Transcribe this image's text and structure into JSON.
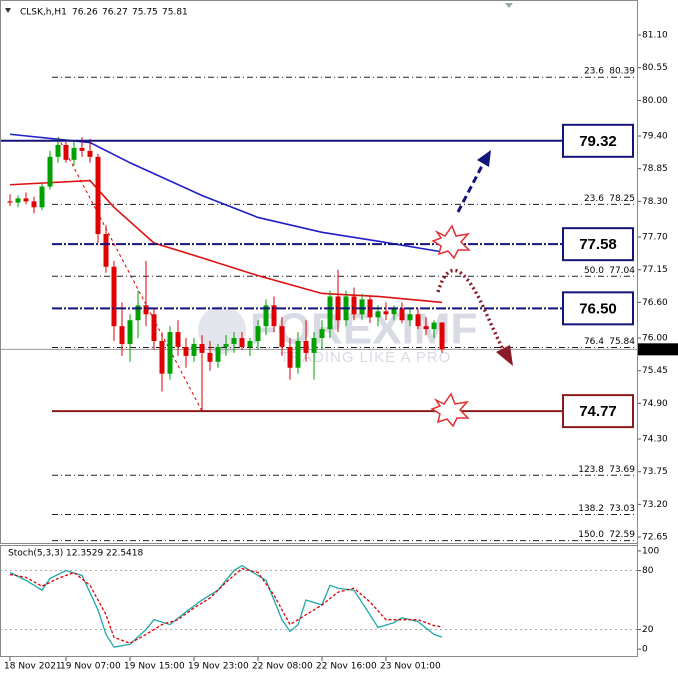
{
  "chart_data": [
    {
      "type": "candlestick",
      "symbol": "CLSK,h,H1",
      "header_ohlc": [
        76.26,
        76.27,
        75.75,
        75.81
      ],
      "watermark": [
        "FOREXIMF",
        "TRADING LIKE A PRO"
      ],
      "categories": [
        "18 Nov 2021",
        null,
        null,
        null,
        null,
        null,
        null,
        "19 Nov 07:00",
        null,
        null,
        null,
        null,
        null,
        null,
        null,
        "19 Nov 15:00",
        null,
        null,
        null,
        null,
        null,
        null,
        null,
        "19 Nov 23:00",
        null,
        null,
        null,
        null,
        null,
        null,
        null,
        "22 Nov 08:00",
        null,
        null,
        null,
        null,
        null,
        null,
        null,
        "22 Nov 16:00",
        null,
        null,
        null,
        null,
        null,
        null,
        null,
        "23 Nov 01:00",
        null,
        null,
        null,
        null,
        null,
        null,
        null
      ],
      "open": [
        78.3,
        78.28,
        78.35,
        78.3,
        78.2,
        78.55,
        79.05,
        79.25,
        79.0,
        79.2,
        79.15,
        79.05,
        77.75,
        77.2,
        76.2,
        75.9,
        76.3,
        76.55,
        76.4,
        75.95,
        75.4,
        76.1,
        75.85,
        75.7,
        75.9,
        75.75,
        75.6,
        75.85,
        75.9,
        76.0,
        75.85,
        75.95,
        76.2,
        76.55,
        76.2,
        75.85,
        75.5,
        75.95,
        75.75,
        76.0,
        76.15,
        76.7,
        76.3,
        76.7,
        76.4,
        76.65,
        76.35,
        76.45,
        76.4,
        76.5,
        76.3,
        76.4,
        76.2,
        76.15,
        76.26
      ],
      "high": [
        78.42,
        78.4,
        78.45,
        78.38,
        78.6,
        79.15,
        79.38,
        79.3,
        79.3,
        79.38,
        79.35,
        79.1,
        77.9,
        77.3,
        76.6,
        76.4,
        76.8,
        77.3,
        76.5,
        76.1,
        76.2,
        76.3,
        76.0,
        76.0,
        76.05,
        75.95,
        75.9,
        76.05,
        76.1,
        76.1,
        76.0,
        76.3,
        76.65,
        76.7,
        76.35,
        76.0,
        76.1,
        76.3,
        76.1,
        76.3,
        76.8,
        77.15,
        76.8,
        76.85,
        76.75,
        76.7,
        76.55,
        76.6,
        76.55,
        76.6,
        76.5,
        76.5,
        76.35,
        76.3,
        76.27
      ],
      "low": [
        78.22,
        78.2,
        78.25,
        78.1,
        78.15,
        78.5,
        78.95,
        78.95,
        78.9,
        79.05,
        78.95,
        77.6,
        77.1,
        75.95,
        75.7,
        75.6,
        76.0,
        76.2,
        75.8,
        75.1,
        75.3,
        75.7,
        75.5,
        75.6,
        74.77,
        75.45,
        75.5,
        75.7,
        75.75,
        75.8,
        75.7,
        75.8,
        76.05,
        76.1,
        75.7,
        75.3,
        75.4,
        75.6,
        75.3,
        75.8,
        76.0,
        76.1,
        76.2,
        76.3,
        76.3,
        76.25,
        76.2,
        76.3,
        76.3,
        76.25,
        76.2,
        76.15,
        76.05,
        76.0,
        75.75
      ],
      "close": [
        78.28,
        78.35,
        78.3,
        78.2,
        78.55,
        79.05,
        79.25,
        79.0,
        79.2,
        79.15,
        79.05,
        77.75,
        77.2,
        76.2,
        75.9,
        76.3,
        76.55,
        76.4,
        75.95,
        75.4,
        76.1,
        75.85,
        75.7,
        75.9,
        75.75,
        75.6,
        75.85,
        75.9,
        76.0,
        75.85,
        75.95,
        76.2,
        76.55,
        76.2,
        75.85,
        75.5,
        75.95,
        75.75,
        76.0,
        76.15,
        76.7,
        76.3,
        76.7,
        76.4,
        76.65,
        76.35,
        76.45,
        76.4,
        76.5,
        76.3,
        76.4,
        76.2,
        76.15,
        76.26,
        75.81
      ],
      "up_color": "#00a000",
      "down_color": "#e00000",
      "ylim": [
        72.55,
        81.69
      ],
      "yticks": [
        {
          "value": 81.1,
          "label": "81.10"
        },
        80.55,
        {
          "value": 80,
          "label": "80.00"
        },
        {
          "value": 79.4,
          "label": "79.40"
        },
        78.85,
        {
          "value": 78.3,
          "label": "78.30"
        },
        {
          "value": 77.7,
          "label": "77.70"
        },
        77.15,
        {
          "value": 76.6,
          "label": "76.60"
        },
        {
          "value": 76,
          "label": "76.00"
        },
        75.45,
        {
          "value": 74.9,
          "label": "74.90"
        },
        {
          "value": 74.3,
          "label": "74.30"
        },
        73.75,
        {
          "value": 73.2,
          "label": "73.20"
        },
        72.65
      ],
      "moving_averages": [
        {
          "color": "#e01010",
          "x": [
            0,
            10,
            13,
            18,
            24,
            31,
            39,
            46,
            54
          ],
          "values": [
            78.58,
            78.65,
            78.2,
            77.6,
            77.35,
            77.05,
            76.75,
            76.7,
            76.6
          ]
        },
        {
          "color": "#2020c8",
          "x": [
            0,
            10,
            15,
            24,
            31,
            39,
            46,
            54
          ],
          "values": [
            79.43,
            79.29,
            78.95,
            78.4,
            78.03,
            77.78,
            77.63,
            77.45
          ]
        }
      ],
      "levels": [
        {
          "value": 79.32,
          "color": "#14147a",
          "style": "solid"
        },
        {
          "value": 77.58,
          "color": "#14147a",
          "style": "dashed"
        },
        {
          "value": {
            "value": 76.5,
            "label": "76.50"
          },
          "color": "#14147a",
          "style": "dashed"
        },
        {
          "value": 74.77,
          "color": "#8b1a1a",
          "style": "solid"
        }
      ],
      "fibonacci": [
        {
          "ratio": "23.6",
          "value": 80.39
        },
        {
          "ratio": "23.6",
          "value": 78.25
        },
        {
          "ratio": "50.0",
          "value": 77.04
        },
        {
          "ratio": "76.4",
          "value": 75.84
        },
        {
          "ratio": "123.8",
          "value": 73.69
        },
        {
          "ratio": "138.2",
          "value": 73.03
        },
        {
          "ratio": "150.0",
          "value": 72.59
        }
      ],
      "current_price": 75.81
    },
    {
      "type": "line",
      "title": "Stoch(5,3,3)",
      "series": [
        {
          "color": "#1fa8a8",
          "style": "solid",
          "x": [
            0,
            2,
            4,
            5,
            7,
            9,
            11,
            12,
            13,
            15,
            17,
            18,
            20,
            22,
            24,
            26,
            28,
            29,
            30,
            32,
            34,
            35,
            36,
            37,
            39,
            40,
            41,
            43,
            45,
            46,
            48,
            49,
            51,
            53,
            54
          ],
          "values": [
            78,
            70,
            60,
            72,
            80,
            75,
            40,
            15,
            2,
            5,
            20,
            30,
            25,
            38,
            50,
            60,
            80,
            85,
            80,
            70,
            30,
            18,
            25,
            50,
            45,
            65,
            62,
            60,
            35,
            22,
            27,
            32,
            28,
            15,
            12.3529
          ]
        },
        {
          "color": "#e00000",
          "style": "dashed",
          "x": [
            0,
            2,
            4,
            6,
            8,
            10,
            12,
            13,
            15,
            17,
            19,
            21,
            23,
            25,
            27,
            29,
            31,
            33,
            35,
            37,
            39,
            41,
            43,
            45,
            47,
            49,
            51,
            53,
            54
          ],
          "values": [
            76,
            73,
            64,
            72,
            78,
            65,
            35,
            12,
            6,
            15,
            25,
            30,
            42,
            52,
            68,
            82,
            78,
            55,
            25,
            35,
            45,
            58,
            62,
            48,
            30,
            30,
            30,
            24,
            22.5418
          ]
        }
      ],
      "ylim": [
        -8,
        106
      ],
      "yticks": [
        0,
        20,
        80,
        100
      ]
    }
  ]
}
